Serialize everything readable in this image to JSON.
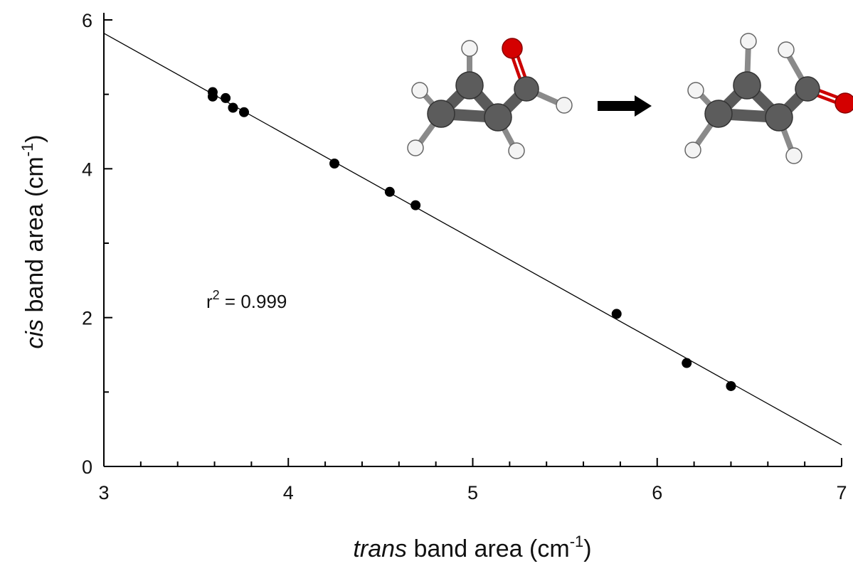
{
  "chart_data": {
    "type": "scatter",
    "x_label": {
      "italic": "trans",
      "text": " band area (cm",
      "sup": "-1",
      "end": ")"
    },
    "y_label": {
      "italic": "cis",
      "text": " band area (cm",
      "sup": "-1",
      "end": ")"
    },
    "annotation": {
      "base": "r",
      "sup": "2",
      "text": " = 0.999"
    },
    "series": [
      {
        "color": "#000000",
        "x": [
          3.59,
          3.59,
          3.66,
          3.7,
          3.76,
          4.25,
          4.55,
          4.69,
          5.78,
          6.16,
          6.4
        ],
        "values": [
          5.03,
          4.97,
          4.95,
          4.82,
          4.76,
          4.07,
          3.69,
          3.51,
          2.05,
          1.39,
          1.08
        ]
      }
    ],
    "fit": {
      "color": "#000000",
      "x": [
        3,
        7
      ],
      "values": [
        5.82,
        0.29
      ]
    },
    "xlim": [
      3,
      7
    ],
    "xticks": [
      3,
      4,
      5,
      6,
      7
    ],
    "x_minor_ticks": [
      3.2,
      3.4,
      3.6,
      3.8,
      4.2,
      4.4,
      4.6,
      4.8,
      5.2,
      5.4,
      5.6,
      5.8,
      6.2,
      6.4,
      6.6,
      6.8
    ],
    "ylim": [
      0,
      6
    ],
    "yticks": [
      0,
      2,
      4,
      6
    ],
    "y_minor_ticks": [
      1,
      3,
      5
    ]
  }
}
